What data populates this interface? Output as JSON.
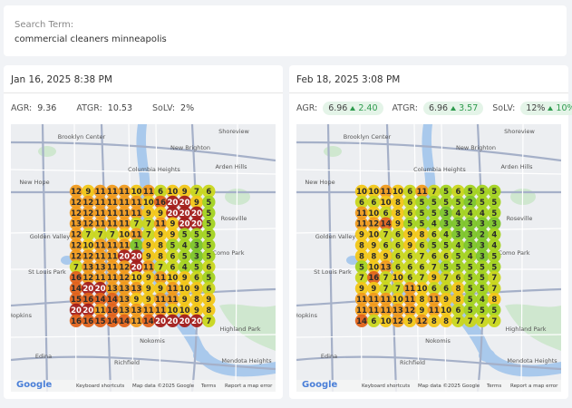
{
  "search": {
    "label": "Search Term:",
    "term": "commercial cleaners minneapolis"
  },
  "cards": [
    {
      "date": "Jan 16, 2025 8:38 PM",
      "metrics": [
        {
          "label": "AGR:",
          "value": "9.36"
        },
        {
          "label": "ATGR:",
          "value": "10.53"
        },
        {
          "label": "SoLV:",
          "value": "2%"
        }
      ],
      "grid": [
        [
          12,
          9,
          11,
          11,
          11,
          10,
          11,
          6,
          10,
          9,
          7,
          6
        ],
        [
          12,
          12,
          11,
          11,
          11,
          11,
          10,
          16,
          20,
          20,
          9,
          5
        ],
        [
          12,
          12,
          11,
          11,
          11,
          11,
          9,
          9,
          20,
          20,
          20,
          5
        ],
        [
          13,
          12,
          11,
          11,
          11,
          7,
          7,
          11,
          9,
          20,
          20,
          5
        ],
        [
          12,
          7,
          7,
          7,
          10,
          11,
          7,
          9,
          9,
          5,
          5,
          5
        ],
        [
          12,
          10,
          11,
          11,
          11,
          1,
          9,
          8,
          5,
          4,
          3,
          5
        ],
        [
          12,
          12,
          11,
          11,
          20,
          20,
          9,
          8,
          6,
          5,
          3,
          5
        ],
        [
          7,
          13,
          13,
          11,
          12,
          20,
          11,
          7,
          6,
          4,
          5,
          6
        ],
        [
          16,
          12,
          11,
          11,
          12,
          10,
          9,
          11,
          10,
          9,
          6,
          5
        ],
        [
          14,
          20,
          20,
          13,
          13,
          13,
          9,
          9,
          11,
          10,
          9,
          6
        ],
        [
          15,
          16,
          14,
          14,
          13,
          9,
          9,
          11,
          11,
          9,
          8,
          9
        ],
        [
          20,
          20,
          11,
          16,
          13,
          13,
          11,
          11,
          10,
          10,
          9,
          8
        ],
        [
          16,
          16,
          15,
          14,
          14,
          11,
          14,
          20,
          20,
          20,
          20,
          7
        ]
      ]
    },
    {
      "date": "Feb 18, 2025 3:08 PM",
      "metrics": [
        {
          "label": "AGR:",
          "value": "6.96",
          "change": "2.40"
        },
        {
          "label": "ATGR:",
          "value": "6.96",
          "change": "3.57"
        },
        {
          "label": "SoLV:",
          "value": "12%",
          "change": "10%"
        }
      ],
      "grid": [
        [
          10,
          10,
          11,
          10,
          6,
          11,
          7,
          5,
          6,
          5,
          5,
          5
        ],
        [
          6,
          6,
          10,
          8,
          6,
          5,
          5,
          5,
          5,
          2,
          5,
          5
        ],
        [
          11,
          10,
          6,
          8,
          6,
          5,
          5,
          3,
          4,
          4,
          4,
          5
        ],
        [
          11,
          12,
          14,
          9,
          5,
          5,
          4,
          3,
          3,
          3,
          3,
          3
        ],
        [
          9,
          10,
          7,
          6,
          9,
          8,
          6,
          4,
          3,
          3,
          2,
          4
        ],
        [
          8,
          9,
          6,
          6,
          9,
          6,
          5,
          5,
          4,
          3,
          3,
          4
        ],
        [
          8,
          8,
          9,
          6,
          6,
          7,
          6,
          6,
          5,
          4,
          3,
          5
        ],
        [
          5,
          10,
          13,
          6,
          6,
          6,
          7,
          5,
          5,
          5,
          5,
          5
        ],
        [
          7,
          16,
          7,
          10,
          6,
          7,
          9,
          7,
          6,
          5,
          5,
          7
        ],
        [
          9,
          9,
          7,
          7,
          11,
          10,
          6,
          6,
          8,
          5,
          5,
          7
        ],
        [
          11,
          11,
          11,
          10,
          11,
          8,
          11,
          9,
          8,
          5,
          4,
          8
        ],
        [
          11,
          11,
          11,
          13,
          12,
          9,
          11,
          10,
          6,
          5,
          5,
          5
        ],
        [
          14,
          6,
          10,
          12,
          9,
          12,
          8,
          8,
          7,
          7,
          7,
          7
        ]
      ]
    }
  ],
  "map_labels": [
    "Brooklyn Center",
    "New Brighton",
    "Shoreview",
    "Columbia Heights",
    "Arden Hills",
    "New Hope",
    "Roseville",
    "Golden Valley",
    "Como Park",
    "St Louis Park",
    "Hopkins",
    "Highland Park",
    "Nokomis",
    "Edina",
    "Richfield",
    "Mendota Heights"
  ],
  "map_footer": {
    "brand": "Google",
    "links": [
      "Keyboard shortcuts",
      "Map data ©2025 Google",
      "Terms",
      "Report a map error"
    ]
  }
}
